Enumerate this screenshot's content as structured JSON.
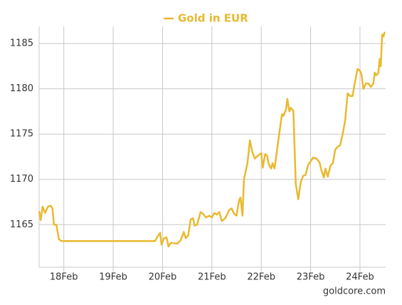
{
  "chart_data": {
    "type": "line",
    "series": [
      {
        "name": "Gold in EUR",
        "color": "#e9b930",
        "x": [
          17.5,
          17.53,
          17.57,
          17.62,
          17.68,
          17.73,
          17.77,
          17.8,
          17.85,
          17.9,
          17.95,
          18.1,
          18.5,
          19.0,
          19.5,
          19.85,
          19.9,
          19.95,
          19.98,
          20.03,
          20.08,
          20.12,
          20.17,
          20.3,
          20.37,
          20.43,
          20.47,
          20.52,
          20.57,
          20.62,
          20.65,
          20.7,
          20.77,
          20.82,
          20.88,
          20.95,
          21.0,
          21.05,
          21.1,
          21.15,
          21.2,
          21.27,
          21.35,
          21.4,
          21.45,
          21.5,
          21.55,
          21.58,
          21.62,
          21.65,
          21.72,
          21.77,
          21.82,
          21.87,
          21.95,
          22.0,
          22.03,
          22.08,
          22.12,
          22.15,
          22.2,
          22.23,
          22.27,
          22.35,
          22.42,
          22.45,
          22.5,
          22.53,
          22.57,
          22.6,
          22.65,
          22.7,
          22.75,
          22.8,
          22.85,
          22.9,
          22.95,
          23.0,
          23.05,
          23.12,
          23.18,
          23.22,
          23.27,
          23.3,
          23.35,
          23.4,
          23.45,
          23.5,
          23.55,
          23.6,
          23.65,
          23.7,
          23.75,
          23.8,
          23.85,
          23.9,
          23.95,
          24.0,
          24.03,
          24.07,
          24.12,
          24.17,
          24.22,
          24.27,
          24.3,
          24.33,
          24.37,
          24.4,
          24.42,
          24.45,
          24.48,
          24.5
        ],
        "values": [
          1166.5,
          1165.5,
          1167,
          1166.3,
          1167,
          1167.1,
          1166.8,
          1165,
          1165,
          1163.4,
          1163.2,
          1163.2,
          1163.2,
          1163.2,
          1163.2,
          1163.2,
          1163.7,
          1164.1,
          1162.8,
          1163.5,
          1163.6,
          1162.6,
          1163,
          1162.9,
          1163.3,
          1164.2,
          1163.5,
          1163.8,
          1165.6,
          1165.7,
          1164.9,
          1165,
          1166.4,
          1166.2,
          1165.8,
          1166,
          1165.8,
          1166.3,
          1166.1,
          1166.4,
          1165.4,
          1165.7,
          1166.6,
          1166.8,
          1166.2,
          1166,
          1167.7,
          1168,
          1166,
          1170,
          1171.8,
          1174.3,
          1173,
          1172.3,
          1172.7,
          1172.9,
          1171.3,
          1172.8,
          1172.6,
          1171.7,
          1171.2,
          1171.8,
          1171.2,
          1174.5,
          1177.2,
          1177,
          1177.7,
          1178.9,
          1177.5,
          1177.9,
          1177.6,
          1169.5,
          1167.8,
          1169.7,
          1170.4,
          1170.5,
          1171.6,
          1172,
          1172.4,
          1172.3,
          1171.9,
          1171,
          1170.2,
          1171.2,
          1170.3,
          1171.5,
          1171.8,
          1173.3,
          1173.6,
          1173.8,
          1175,
          1176.5,
          1179.5,
          1179.2,
          1179.2,
          1180.8,
          1182.2,
          1182,
          1181.6,
          1180,
          1180.6,
          1180.6,
          1180.2,
          1180.6,
          1181.8,
          1181.5,
          1181.7,
          1183.3,
          1182.5,
          1186,
          1185.8,
          1186.3
        ]
      }
    ],
    "xlim": [
      17.5,
      24.52
    ],
    "xticks": [
      {
        "value": 18,
        "label": "18Feb"
      },
      {
        "value": 19,
        "label": "19Feb"
      },
      {
        "value": 20,
        "label": "20Feb"
      },
      {
        "value": 21,
        "label": "21Feb"
      },
      {
        "value": 22,
        "label": "22Feb"
      },
      {
        "value": 23,
        "label": "23Feb"
      },
      {
        "value": 24,
        "label": "24Feb"
      }
    ],
    "ylim": [
      1160.3,
      1186.9
    ],
    "yticks": [
      1165,
      1170,
      1175,
      1180,
      1185
    ],
    "grid": true,
    "credit": "goldcore.com"
  }
}
